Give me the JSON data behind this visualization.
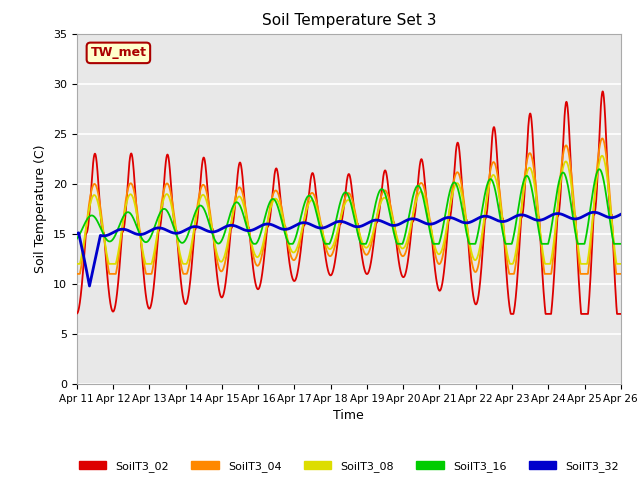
{
  "title": "Soil Temperature Set 3",
  "xlabel": "Time",
  "ylabel": "Soil Temperature (C)",
  "ylim": [
    0,
    35
  ],
  "yticks": [
    0,
    5,
    10,
    15,
    20,
    25,
    30,
    35
  ],
  "annotation_text": "TW_met",
  "annotation_bg": "#ffffcc",
  "annotation_border": "#aa0000",
  "bg_color": "#e8e8e8",
  "line_colors": {
    "SoilT3_02": "#dd0000",
    "SoilT3_04": "#ff8800",
    "SoilT3_08": "#dddd00",
    "SoilT3_16": "#00cc00",
    "SoilT3_32": "#0000cc"
  },
  "legend_labels": [
    "SoilT3_02",
    "SoilT3_04",
    "SoilT3_08",
    "SoilT3_16",
    "SoilT3_32"
  ],
  "x_tick_labels": [
    "Apr 11",
    "Apr 12",
    "Apr 13",
    "Apr 14",
    "Apr 15",
    "Apr 16",
    "Apr 17",
    "Apr 18",
    "Apr 19",
    "Apr 20",
    "Apr 21",
    "Apr 22",
    "Apr 23",
    "Apr 24",
    "Apr 25",
    "Apr 26"
  ],
  "n_days": 15,
  "pts_per_day": 240
}
